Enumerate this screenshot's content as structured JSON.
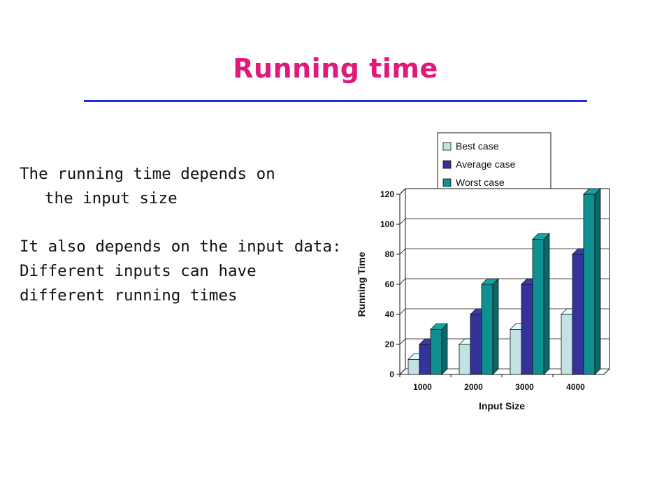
{
  "slide": {
    "title": "Running time",
    "text": {
      "p1_line1": "The running time depends on",
      "p1_line2": "the input size",
      "p2_line1": "It also depends on the input data:",
      "p2_line2": "Different inputs can have",
      "p2_line3": "different running times"
    }
  },
  "colors": {
    "title": "#e0197a",
    "rule": "#1f2fd6",
    "best": "#c3e2e6",
    "average": "#33339a",
    "worst": "#0f9090"
  },
  "chart_data": {
    "type": "bar",
    "style": "3d-clustered",
    "categories": [
      "1000",
      "2000",
      "3000",
      "4000"
    ],
    "series": [
      {
        "name": "Best case",
        "values": [
          10,
          20,
          30,
          40
        ]
      },
      {
        "name": "Average case",
        "values": [
          20,
          40,
          60,
          80
        ]
      },
      {
        "name": "Worst case",
        "values": [
          30,
          60,
          90,
          120
        ]
      }
    ],
    "xlabel": "Input Size",
    "ylabel": "Running Time",
    "ylim": [
      0,
      120
    ],
    "yticks": [
      0,
      20,
      40,
      60,
      80,
      100,
      120
    ],
    "legend": "top",
    "grid": false
  }
}
